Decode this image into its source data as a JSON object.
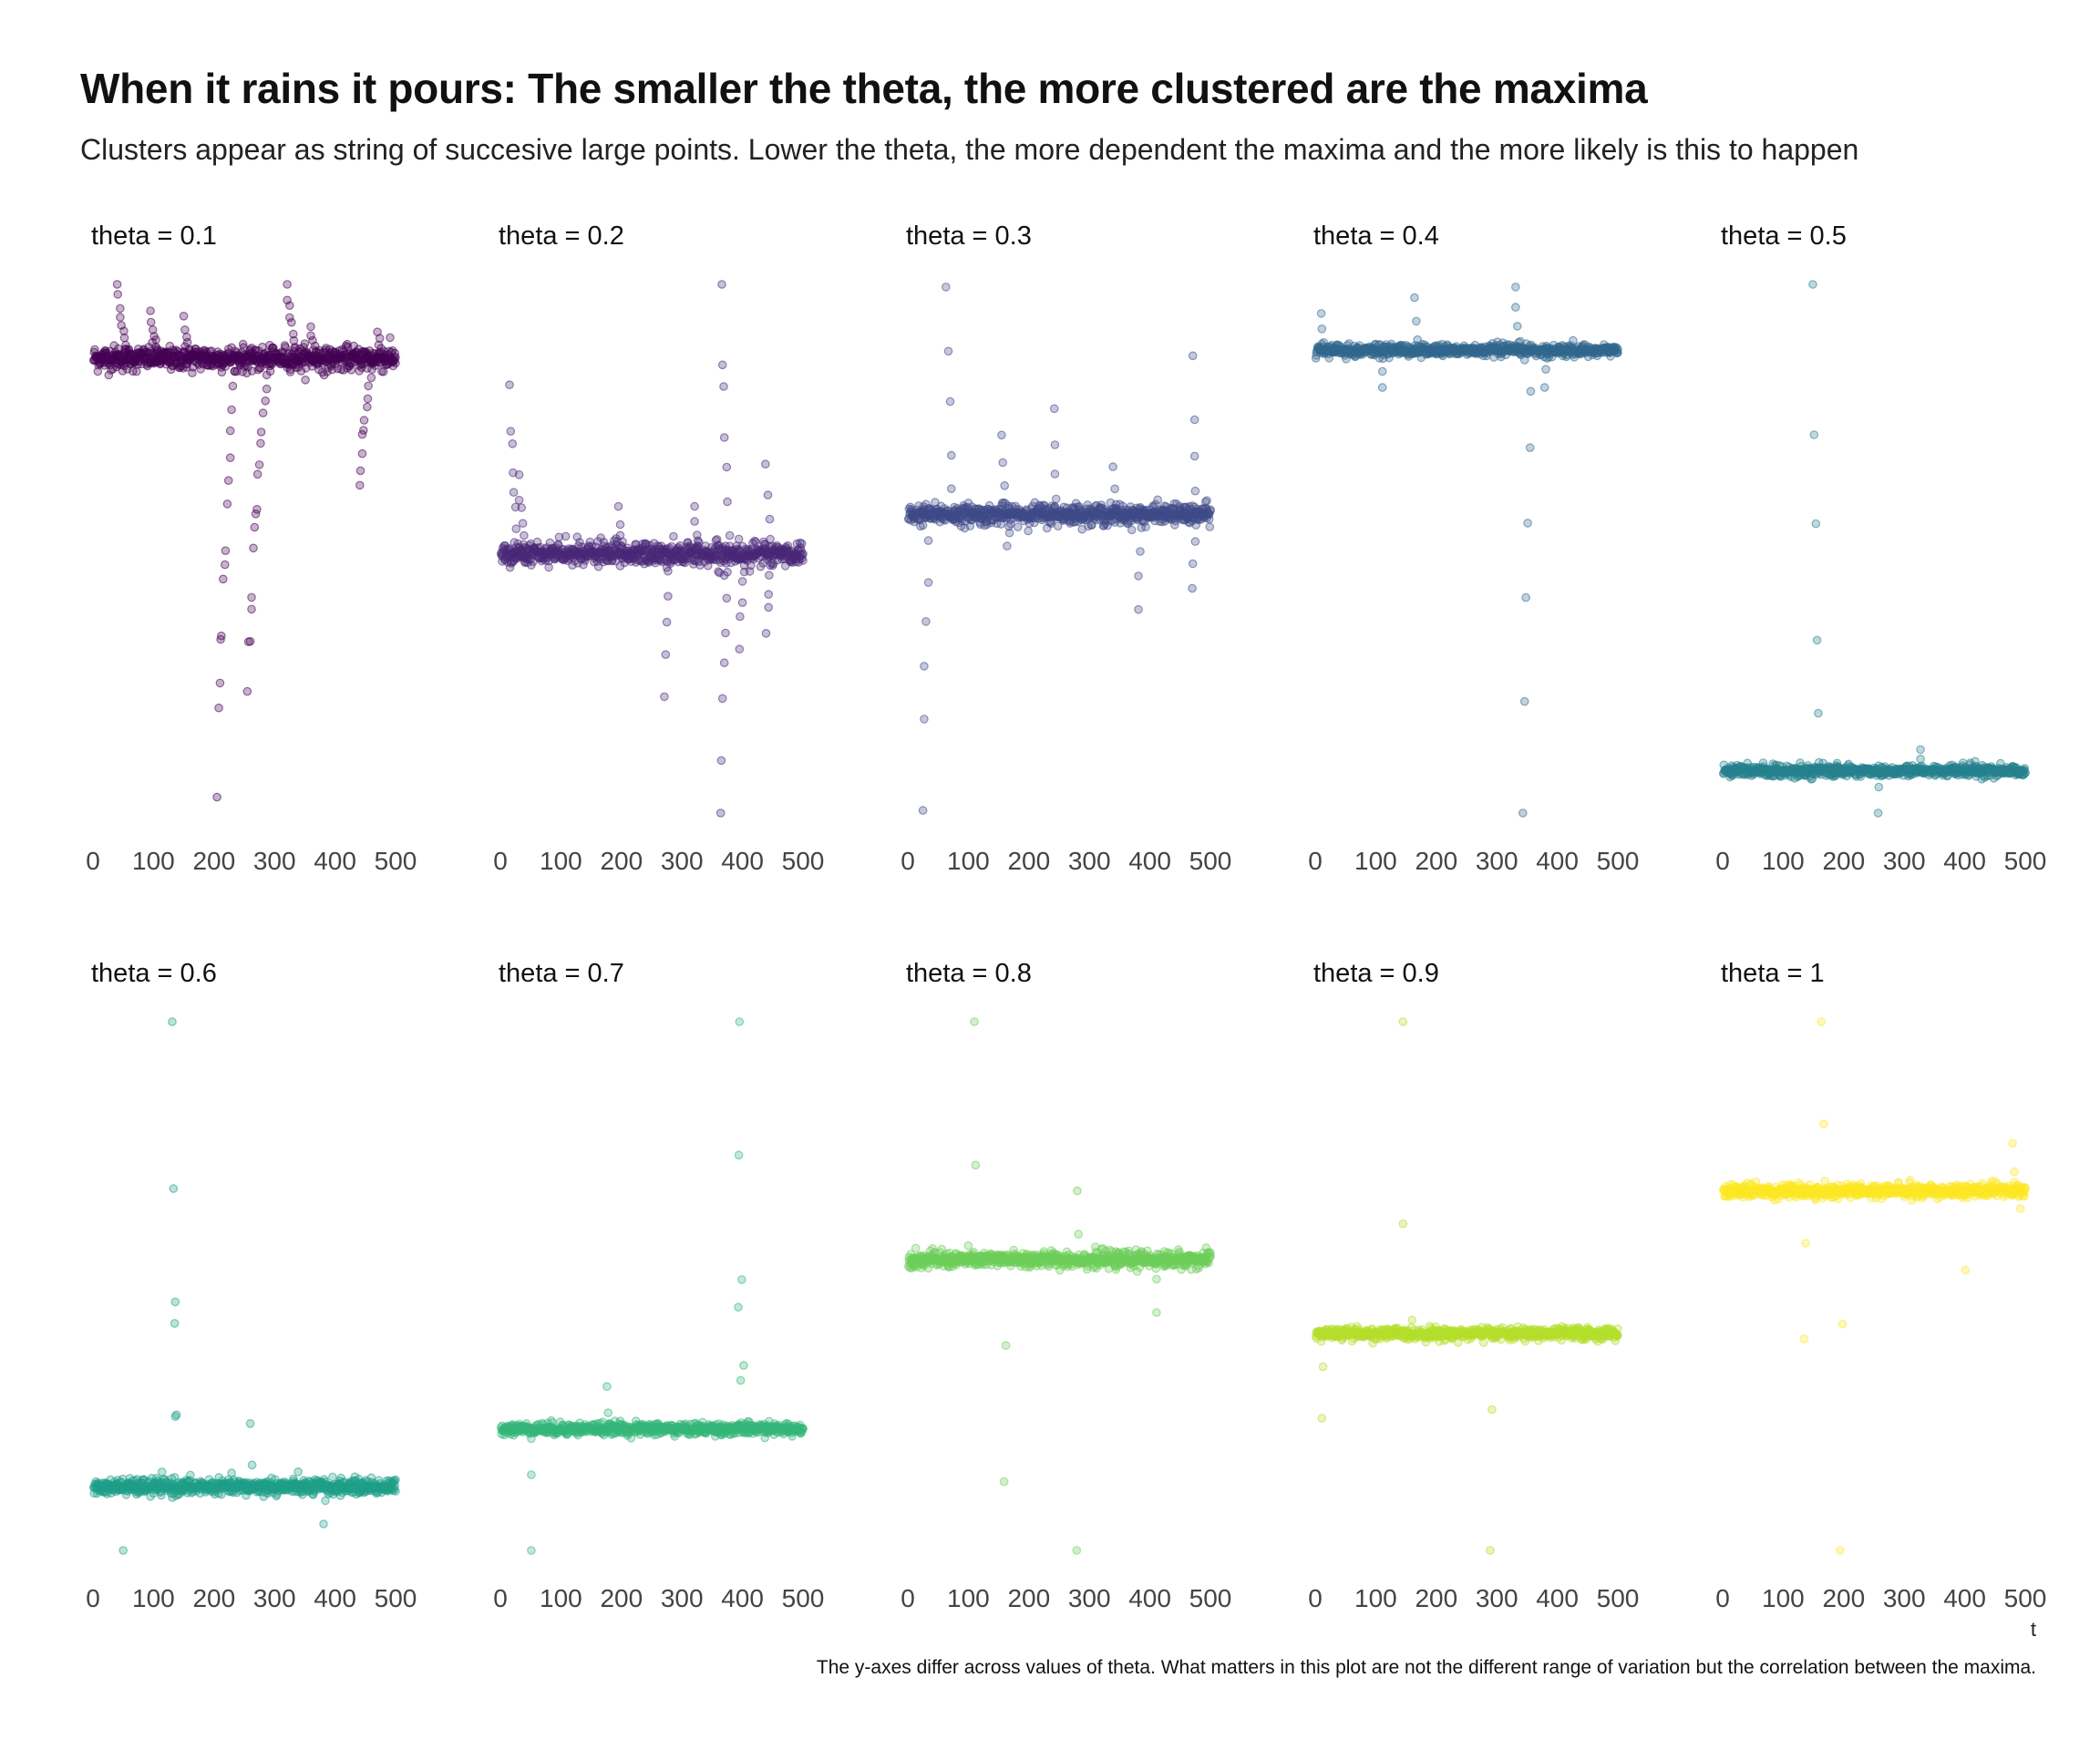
{
  "chart_data": {
    "type": "scatter",
    "title": "When it rains it pours: The smaller the theta, the more clustered are the maxima",
    "subtitle": "Clusters appear as string of succesive large points. Lower the theta, the more dependent the maxima and the more likely is this to happen",
    "caption": "The y-axes differ across values of theta. What matters in this plot are not the different range of variation but the correlation between the maxima.",
    "xlabel": "t",
    "ylabel": "",
    "xlim": [
      0,
      500
    ],
    "x_ticks": [
      "0",
      "100",
      "200",
      "300",
      "400",
      "500"
    ],
    "y_axis_shown": false,
    "y_scales": "free",
    "grid": false,
    "legend": "none",
    "layout": {
      "rows": 2,
      "cols": 5
    },
    "panels": [
      {
        "label": "theta = 0.1",
        "theta": 0.1,
        "color": "#440154",
        "baseline": 0.86,
        "spread": 0.012,
        "clusters": [
          {
            "t": 40,
            "dir": 1,
            "amp": 0.14,
            "len": 10
          },
          {
            "t": 95,
            "dir": 1,
            "amp": 0.09,
            "len": 8
          },
          {
            "t": 150,
            "dir": 1,
            "amp": 0.08,
            "len": 6
          },
          {
            "t": 205,
            "dir": -1,
            "amp": 0.83,
            "len": 15
          },
          {
            "t": 255,
            "dir": -1,
            "amp": 0.63,
            "len": 18
          },
          {
            "t": 320,
            "dir": 1,
            "amp": 0.15,
            "len": 9
          },
          {
            "t": 360,
            "dir": 1,
            "amp": 0.06,
            "len": 6
          },
          {
            "t": 440,
            "dir": -1,
            "amp": 0.24,
            "len": 12
          },
          {
            "t": 470,
            "dir": 1,
            "amp": 0.05,
            "len": 6
          }
        ]
      },
      {
        "label": "theta = 0.2",
        "theta": 0.2,
        "color": "#482878",
        "baseline": 0.49,
        "spread": 0.012,
        "clusters": [
          {
            "t": 15,
            "dir": 1,
            "amp": 0.32,
            "len": 8
          },
          {
            "t": 30,
            "dir": 1,
            "amp": 0.15,
            "len": 6
          },
          {
            "t": 195,
            "dir": 1,
            "amp": 0.09,
            "len": 4
          },
          {
            "t": 270,
            "dir": -1,
            "amp": 0.27,
            "len": 5
          },
          {
            "t": 320,
            "dir": 1,
            "amp": 0.09,
            "len": 4
          },
          {
            "t": 365,
            "dir": 1,
            "amp": 0.51,
            "len": 7
          },
          {
            "t": 363,
            "dir": -1,
            "amp": 0.49,
            "len": 7
          },
          {
            "t": 395,
            "dir": -1,
            "amp": 0.18,
            "len": 5
          },
          {
            "t": 440,
            "dir": -1,
            "amp": 0.15,
            "len": 5
          },
          {
            "t": 440,
            "dir": 1,
            "amp": 0.17,
            "len": 4
          }
        ]
      },
      {
        "label": "theta = 0.3",
        "theta": 0.3,
        "color": "#3E4A89",
        "baseline": 0.565,
        "spread": 0.01,
        "clusters": [
          {
            "t": 25,
            "dir": -1,
            "amp": 0.56,
            "len": 6
          },
          {
            "t": 65,
            "dir": 1,
            "amp": 0.43,
            "len": 5
          },
          {
            "t": 155,
            "dir": 1,
            "amp": 0.15,
            "len": 4
          },
          {
            "t": 165,
            "dir": -1,
            "amp": 0.06,
            "len": 4
          },
          {
            "t": 240,
            "dir": 1,
            "amp": 0.2,
            "len": 4
          },
          {
            "t": 340,
            "dir": 1,
            "amp": 0.09,
            "len": 3
          },
          {
            "t": 380,
            "dir": -1,
            "amp": 0.18,
            "len": 4
          },
          {
            "t": 470,
            "dir": 1,
            "amp": 0.3,
            "len": 4
          },
          {
            "t": 470,
            "dir": -1,
            "amp": 0.14,
            "len": 4
          }
        ]
      },
      {
        "label": "theta = 0.4",
        "theta": 0.4,
        "color": "#31688E",
        "baseline": 0.875,
        "spread": 0.006,
        "clusters": [
          {
            "t": 10,
            "dir": 1,
            "amp": 0.07,
            "len": 3
          },
          {
            "t": 110,
            "dir": -1,
            "amp": 0.07,
            "len": 3
          },
          {
            "t": 165,
            "dir": 1,
            "amp": 0.1,
            "len": 3
          },
          {
            "t": 330,
            "dir": 1,
            "amp": 0.12,
            "len": 4
          },
          {
            "t": 345,
            "dir": -1,
            "amp": 0.88,
            "len": 6
          },
          {
            "t": 380,
            "dir": -1,
            "amp": 0.07,
            "len": 3
          }
        ]
      },
      {
        "label": "theta = 0.5",
        "theta": 0.5,
        "color": "#26828E",
        "baseline": 0.08,
        "spread": 0.006,
        "clusters": [
          {
            "t": 150,
            "dir": 1,
            "amp": 0.92,
            "len": 5
          },
          {
            "t": 255,
            "dir": -1,
            "amp": 0.08,
            "len": 2
          },
          {
            "t": 325,
            "dir": 1,
            "amp": 0.04,
            "len": 3
          }
        ]
      },
      {
        "label": "theta = 0.6",
        "theta": 0.6,
        "color": "#1F9E89",
        "baseline": 0.12,
        "spread": 0.008,
        "clusters": [
          {
            "t": 130,
            "dir": 1,
            "amp": 0.88,
            "len": 4
          },
          {
            "t": 135,
            "dir": 1,
            "amp": 0.35,
            "len": 2
          },
          {
            "t": 260,
            "dir": 1,
            "amp": 0.12,
            "len": 2
          },
          {
            "t": 380,
            "dir": -1,
            "amp": 0.07,
            "len": 2
          },
          {
            "t": 50,
            "dir": -1,
            "amp": 0.12,
            "len": 1
          }
        ]
      },
      {
        "label": "theta = 0.7",
        "theta": 0.7,
        "color": "#35B779",
        "baseline": 0.23,
        "spread": 0.006,
        "clusters": [
          {
            "t": 395,
            "dir": 1,
            "amp": 0.77,
            "len": 4
          },
          {
            "t": 395,
            "dir": 1,
            "amp": 0.23,
            "len": 2
          },
          {
            "t": 175,
            "dir": 1,
            "amp": 0.08,
            "len": 2
          },
          {
            "t": 50,
            "dir": -1,
            "amp": 0.23,
            "len": 2
          }
        ]
      },
      {
        "label": "theta = 0.8",
        "theta": 0.8,
        "color": "#6DCD59",
        "baseline": 0.55,
        "spread": 0.008,
        "clusters": [
          {
            "t": 110,
            "dir": 1,
            "amp": 0.45,
            "len": 2
          },
          {
            "t": 160,
            "dir": -1,
            "amp": 0.42,
            "len": 2
          },
          {
            "t": 280,
            "dir": 1,
            "amp": 0.13,
            "len": 2
          },
          {
            "t": 280,
            "dir": -1,
            "amp": 0.55,
            "len": 1
          },
          {
            "t": 410,
            "dir": -1,
            "amp": 0.1,
            "len": 2
          }
        ]
      },
      {
        "label": "theta = 0.9",
        "theta": 0.9,
        "color": "#B4DE2C",
        "baseline": 0.41,
        "spread": 0.006,
        "clusters": [
          {
            "t": 145,
            "dir": 1,
            "amp": 0.59,
            "len": 2
          },
          {
            "t": 290,
            "dir": -1,
            "amp": 0.41,
            "len": 2
          },
          {
            "t": 10,
            "dir": -1,
            "amp": 0.16,
            "len": 2
          }
        ]
      },
      {
        "label": "theta = 1",
        "theta": 1,
        "color": "#FDE725",
        "baseline": 0.68,
        "spread": 0.007,
        "clusters": [
          {
            "t": 165,
            "dir": 1,
            "amp": 0.32,
            "len": 2
          },
          {
            "t": 195,
            "dir": -1,
            "amp": 0.68,
            "len": 2
          },
          {
            "t": 135,
            "dir": -1,
            "amp": 0.28,
            "len": 2
          },
          {
            "t": 480,
            "dir": 1,
            "amp": 0.09,
            "len": 2
          },
          {
            "t": 400,
            "dir": -1,
            "amp": 0.15,
            "len": 1
          }
        ]
      }
    ]
  }
}
